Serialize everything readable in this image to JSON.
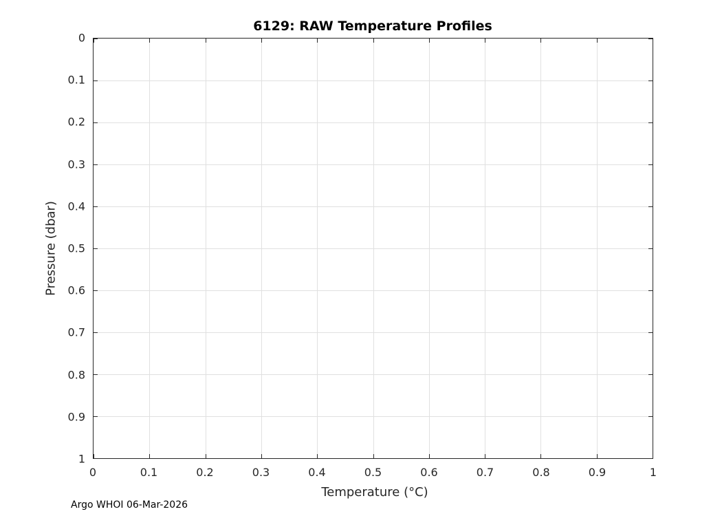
{
  "chart_data": {
    "type": "line",
    "title": "6129: RAW Temperature Profiles",
    "xlabel": "Temperature (°C)",
    "ylabel": "Pressure (dbar)",
    "xlim": [
      0,
      1
    ],
    "ylim": [
      0,
      1
    ],
    "y_axis_direction": "reversed",
    "grid": true,
    "x_ticks": [
      0,
      0.1,
      0.2,
      0.3,
      0.4,
      0.5,
      0.6,
      0.7,
      0.8,
      0.9,
      1
    ],
    "x_tick_labels": [
      "0",
      "0.1",
      "0.2",
      "0.3",
      "0.4",
      "0.5",
      "0.6",
      "0.7",
      "0.8",
      "0.9",
      "1"
    ],
    "y_ticks": [
      0,
      0.1,
      0.2,
      0.3,
      0.4,
      0.5,
      0.6,
      0.7,
      0.8,
      0.9,
      1
    ],
    "y_tick_labels": [
      "0",
      "0.1",
      "0.2",
      "0.3",
      "0.4",
      "0.5",
      "0.6",
      "0.7",
      "0.8",
      "0.9",
      "1"
    ],
    "series": [],
    "colors": {
      "axis": "#262626",
      "grid": "#e0e0e0",
      "text": "#262626",
      "background": "#ffffff"
    }
  },
  "footer": {
    "credit": "Argo WHOI 06-Mar-2026"
  }
}
